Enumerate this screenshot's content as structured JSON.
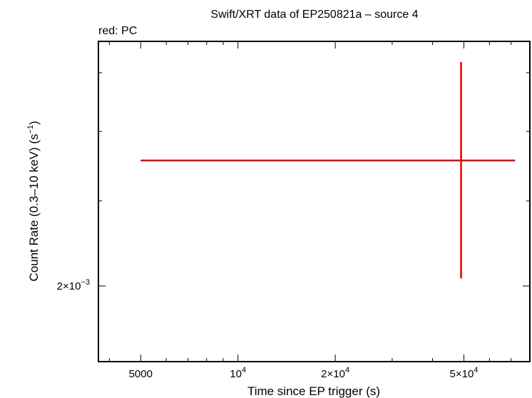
{
  "chart_data": {
    "type": "scatter",
    "title": "Swift/XRT data of EP250821a – source 4",
    "subtitle": "red: PC",
    "xlabel": "Time since EP trigger (s)",
    "ylabel": "Count Rate (0.3–10 keV) (s",
    "ylabel_sup": "−1",
    "ylabel_tail": ")",
    "xscale": "log",
    "yscale": "log",
    "xlim": [
      3700,
      80000
    ],
    "ylim": [
      0.00164,
      0.0038
    ],
    "x_ticks": [
      {
        "value": 5000,
        "label": "5000"
      },
      {
        "value": 10000,
        "label": "10",
        "sup": "4"
      },
      {
        "value": 20000,
        "label": "2×10",
        "sup": "4"
      },
      {
        "value": 50000,
        "label": "5×10",
        "sup": "4"
      }
    ],
    "y_ticks": [
      {
        "value": 0.002,
        "label": "2×10",
        "sup": "−3"
      }
    ],
    "series": [
      {
        "color": "#e00000",
        "points": [
          {
            "x": 49000,
            "y": 0.00278,
            "x_err_low": 44000,
            "x_err_high": 23000,
            "y_err_low": 0.00074,
            "y_err_high": 0.00082
          }
        ]
      }
    ]
  }
}
